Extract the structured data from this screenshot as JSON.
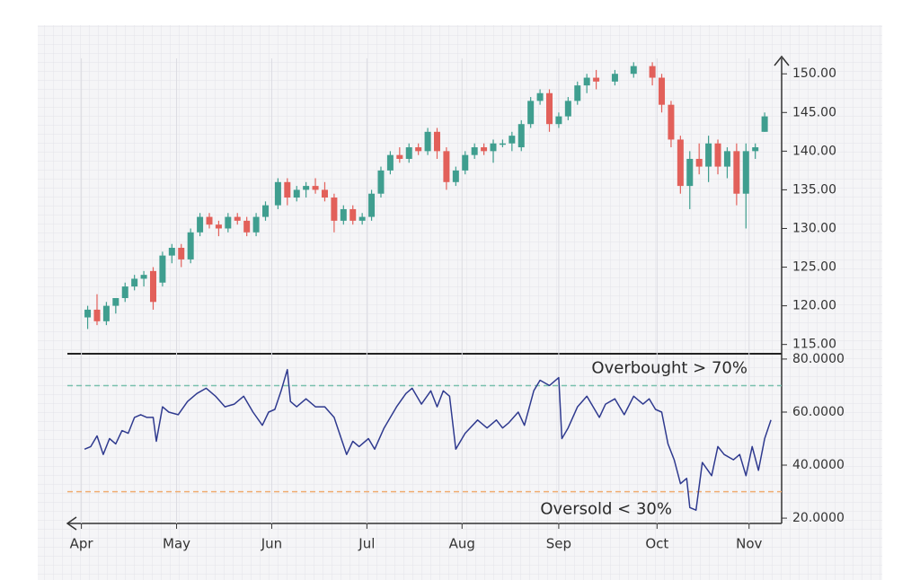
{
  "chart_data": [
    {
      "type": "candlestick",
      "xlim": [
        -5.5,
        222
      ],
      "ylim": [
        113.8,
        152
      ],
      "yticks": [
        {
          "value": 115,
          "label": "115.00"
        },
        {
          "value": 120,
          "label": "120.00"
        },
        {
          "value": 125,
          "label": "125.00"
        },
        {
          "value": 130,
          "label": "130.00"
        },
        {
          "value": 135,
          "label": "135.00"
        },
        {
          "value": 140,
          "label": "140.00"
        },
        {
          "value": 145,
          "label": "145.00"
        },
        {
          "value": 150,
          "label": "150.00"
        }
      ],
      "up_color": "#3f9e8f",
      "down_color": "#e2605a",
      "x": [
        1,
        4,
        7,
        10,
        13,
        16,
        19,
        22,
        25,
        28,
        31,
        34,
        37,
        40,
        43,
        46,
        49,
        52,
        55,
        58,
        62,
        65,
        68,
        71,
        74,
        77,
        80,
        83,
        86,
        89,
        92,
        95,
        98,
        101,
        104,
        107,
        110,
        113,
        116,
        119,
        122,
        125,
        128,
        131,
        134,
        137,
        140,
        143,
        146,
        149,
        152,
        155,
        158,
        161,
        164,
        170,
        176,
        182,
        185,
        188,
        191,
        194,
        197,
        200,
        203,
        206,
        209,
        212,
        215,
        218
      ],
      "open": [
        118.5,
        119.5,
        118,
        120,
        121,
        122.5,
        123.5,
        124.5,
        123,
        126.5,
        127.5,
        126,
        129.5,
        131.5,
        130.5,
        130,
        131.5,
        131,
        129.5,
        131.5,
        133,
        136,
        134,
        135,
        135.5,
        135,
        134,
        131,
        132.5,
        131,
        131.5,
        134.5,
        137.5,
        139.5,
        139,
        140.5,
        140,
        142.5,
        140,
        136,
        137.5,
        139.5,
        140.5,
        140,
        141,
        141,
        140.5,
        143.5,
        146.5,
        147.5,
        143.5,
        144.5,
        146.5,
        148.5,
        149.5,
        149,
        150,
        151,
        149.5,
        146,
        141.5,
        135.5,
        139,
        138,
        141,
        138,
        140,
        134.5,
        140,
        142.5
      ],
      "high": [
        120,
        121.5,
        120.5,
        121,
        123,
        124,
        124.5,
        125,
        127,
        128,
        128,
        130,
        132,
        132,
        131,
        132,
        132,
        131.5,
        132,
        133.5,
        136.5,
        136.5,
        135.5,
        136,
        136.5,
        136,
        134.5,
        133,
        133,
        132,
        135,
        138,
        140,
        140.5,
        141,
        141,
        143,
        143,
        140.5,
        138,
        140,
        141,
        141,
        141.5,
        141.5,
        142.5,
        144,
        147,
        148,
        148,
        145,
        147,
        149,
        150,
        150.5,
        150.5,
        151.5,
        151.5,
        150,
        146.5,
        142,
        140,
        141,
        142,
        141.5,
        140.5,
        141,
        141,
        141,
        145
      ],
      "low": [
        117,
        117.5,
        117.5,
        119,
        120.5,
        122,
        122.5,
        119.5,
        122.5,
        125.5,
        125,
        125.5,
        129,
        130,
        129,
        129.5,
        130.5,
        129,
        129,
        131,
        132.5,
        133,
        133.5,
        134,
        134.5,
        133.5,
        129.5,
        130.5,
        130.5,
        130.5,
        131,
        134,
        137,
        138.5,
        138.5,
        139.5,
        139.5,
        139,
        135,
        135.5,
        137,
        139,
        139.5,
        138.5,
        140.5,
        140,
        140,
        143,
        146,
        142.5,
        143,
        144,
        146,
        147.5,
        148,
        148.5,
        149.5,
        148.5,
        145,
        140.5,
        134.5,
        132.5,
        137,
        136,
        137,
        136.5,
        133,
        130,
        139,
        142.5
      ],
      "close": [
        119.5,
        118,
        120,
        121,
        122.5,
        123.5,
        124,
        120.5,
        126.5,
        127.5,
        126,
        129.5,
        131.5,
        130.5,
        130,
        131.5,
        131,
        129.5,
        131.5,
        133,
        136,
        134,
        135,
        135.5,
        135,
        134,
        131,
        132.5,
        131,
        131.5,
        134.5,
        137.5,
        139.5,
        139,
        140.5,
        140,
        142.5,
        140,
        136,
        137.5,
        139.5,
        140.5,
        140,
        141,
        141,
        142,
        143.5,
        146.5,
        147.5,
        143.5,
        144.5,
        146.5,
        148.5,
        149.5,
        149,
        150,
        151,
        149.5,
        146,
        141.5,
        135.5,
        139,
        138,
        141,
        138,
        140,
        134.5,
        140,
        140.5,
        144.5
      ]
    },
    {
      "type": "line",
      "xlim": [
        -5.5,
        222
      ],
      "ylim": [
        18,
        82
      ],
      "yticks": [
        {
          "value": 20,
          "label": "20.0000"
        },
        {
          "value": 40,
          "label": "40.0000"
        },
        {
          "value": 60,
          "label": "60.0000"
        },
        {
          "value": 80,
          "label": "80.0000"
        }
      ],
      "xticks": [
        {
          "value": -1,
          "label": "Apr"
        },
        {
          "value": 29.5,
          "label": "May"
        },
        {
          "value": 60,
          "label": "Jun"
        },
        {
          "value": 90.5,
          "label": "Jul"
        },
        {
          "value": 121,
          "label": "Aug"
        },
        {
          "value": 152,
          "label": "Sep"
        },
        {
          "value": 183.5,
          "label": "Oct"
        },
        {
          "value": 213,
          "label": "Nov"
        }
      ],
      "grid": true,
      "series": [
        {
          "color": "#2f3a8f",
          "x": [
            0,
            2,
            4,
            6,
            8,
            10,
            12,
            14,
            16,
            18,
            20,
            22,
            23,
            25,
            27,
            30,
            33,
            36,
            39,
            42,
            45,
            48,
            51,
            54,
            57,
            59,
            61,
            63,
            65,
            66,
            68,
            71,
            74,
            77,
            80,
            82,
            84,
            86,
            88,
            91,
            93,
            96,
            100,
            103,
            105,
            108,
            111,
            113,
            115,
            117,
            119,
            122,
            126,
            129,
            132,
            134,
            136,
            139,
            141,
            144,
            146,
            149,
            152,
            153,
            155,
            158,
            161,
            165,
            167,
            170,
            173,
            176,
            179,
            181,
            183,
            185,
            187,
            189,
            191,
            193,
            194,
            196,
            198,
            201,
            203,
            205,
            208,
            210,
            212,
            214,
            216,
            218,
            220
          ],
          "values": [
            46,
            47,
            51,
            44,
            50,
            48,
            53,
            52,
            58,
            59,
            58,
            58,
            49,
            62,
            60,
            59,
            64,
            67,
            69,
            66,
            62,
            63,
            66,
            60,
            55,
            60,
            61,
            68,
            76,
            64,
            62,
            65,
            62,
            62,
            58,
            51,
            44,
            49,
            47,
            50,
            46,
            54,
            62,
            67,
            69,
            63,
            68,
            62,
            68,
            66,
            46,
            52,
            57,
            54,
            57,
            54,
            56,
            60,
            55,
            68,
            72,
            70,
            73,
            50,
            54,
            62,
            66,
            58,
            63,
            65,
            59,
            66,
            63,
            65,
            61,
            60,
            48,
            42,
            33,
            35,
            24,
            23,
            41,
            36,
            47,
            44,
            42,
            44,
            36,
            47,
            38,
            50,
            57
          ]
        }
      ],
      "annotations": [
        {
          "text": "Overbought > 70%",
          "y": 70,
          "color": "#79c0ad"
        },
        {
          "text": "Oversold < 30%",
          "y": 30,
          "color": "#f0ad72"
        }
      ]
    }
  ]
}
